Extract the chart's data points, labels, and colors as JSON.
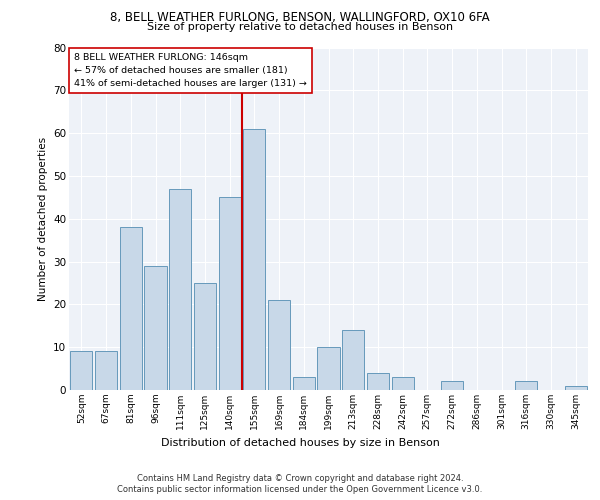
{
  "title1": "8, BELL WEATHER FURLONG, BENSON, WALLINGFORD, OX10 6FA",
  "title2": "Size of property relative to detached houses in Benson",
  "xlabel": "Distribution of detached houses by size in Benson",
  "ylabel": "Number of detached properties",
  "categories": [
    "52sqm",
    "67sqm",
    "81sqm",
    "96sqm",
    "111sqm",
    "125sqm",
    "140sqm",
    "155sqm",
    "169sqm",
    "184sqm",
    "199sqm",
    "213sqm",
    "228sqm",
    "242sqm",
    "257sqm",
    "272sqm",
    "286sqm",
    "301sqm",
    "316sqm",
    "330sqm",
    "345sqm"
  ],
  "values": [
    9,
    9,
    38,
    29,
    47,
    25,
    45,
    61,
    21,
    3,
    10,
    14,
    4,
    3,
    0,
    2,
    0,
    0,
    2,
    0,
    1
  ],
  "bar_color": "#c8d8e8",
  "bar_edge_color": "#6699bb",
  "vline_color": "#cc0000",
  "annotation_line1": "8 BELL WEATHER FURLONG: 146sqm",
  "annotation_line2": "← 57% of detached houses are smaller (181)",
  "annotation_line3": "41% of semi-detached houses are larger (131) →",
  "annotation_box_edge": "#cc0000",
  "ylim": [
    0,
    80
  ],
  "yticks": [
    0,
    10,
    20,
    30,
    40,
    50,
    60,
    70,
    80
  ],
  "footer1": "Contains HM Land Registry data © Crown copyright and database right 2024.",
  "footer2": "Contains public sector information licensed under the Open Government Licence v3.0.",
  "plot_bg_color": "#eef2f8"
}
